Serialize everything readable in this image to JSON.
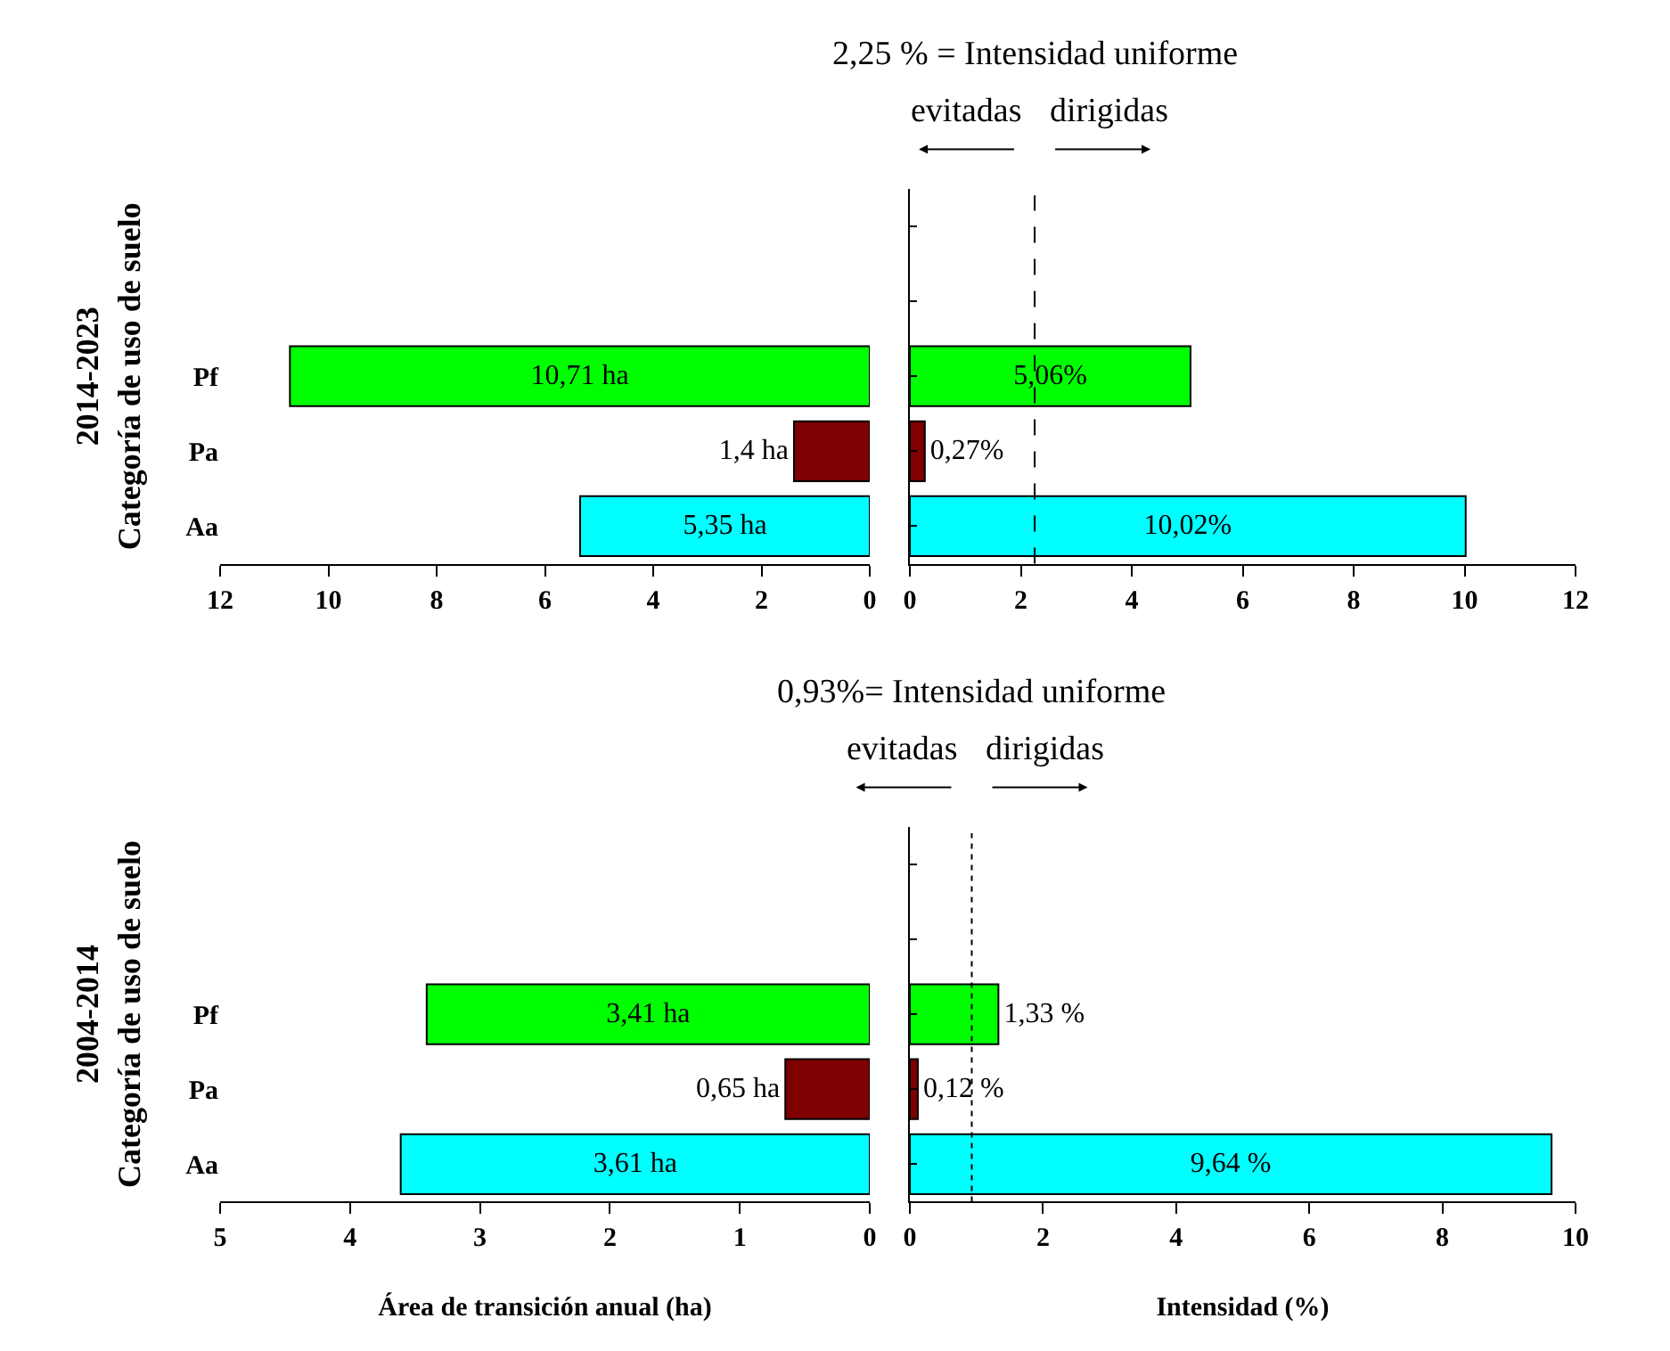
{
  "chart_data": [
    {
      "type": "bar",
      "orientation": "horizontal",
      "ylabel": "2014-2023\nCategoría de uso de suelo",
      "categories": [
        null,
        null,
        "Pf",
        "Pa",
        "Aa"
      ],
      "values": [
        null,
        null,
        10.71,
        1.4,
        5.35
      ],
      "colors": [
        null,
        null,
        "#00ff00",
        "#7f0000",
        "#00ffff"
      ],
      "value_labels": [
        null,
        null,
        "10,71 ha",
        "1,4 ha",
        "5,35 ha"
      ],
      "xlim": [
        12,
        0
      ],
      "xticks": [
        12,
        10,
        8,
        6,
        4,
        2,
        0
      ]
    },
    {
      "type": "bar",
      "orientation": "horizontal",
      "categories": [
        null,
        null,
        "Pf",
        "Pa",
        "Aa"
      ],
      "values": [
        null,
        null,
        5.06,
        0.27,
        10.02
      ],
      "colors": [
        null,
        null,
        "#00ff00",
        "#7f0000",
        "#00ffff"
      ],
      "value_labels": [
        null,
        null,
        "5,06%",
        "0,27%",
        "10,02%"
      ],
      "xlim": [
        0,
        12
      ],
      "xticks": [
        0,
        2,
        4,
        6,
        8,
        10,
        12
      ],
      "tick_labels": "x",
      "ref_lines": [
        {
          "axis": "x",
          "value": 2.25,
          "label": "2,25 % = Intensidad uniforme",
          "line_style": "dashed"
        }
      ],
      "annotations": [
        "evitadas",
        "dirigidas"
      ]
    },
    {
      "type": "bar",
      "orientation": "horizontal",
      "ylabel": "2004-2014\nCategoría de uso de suelo",
      "xlabel": "Área de transición anual (ha)",
      "categories": [
        null,
        null,
        "Pf",
        "Pa",
        "Aa"
      ],
      "values": [
        null,
        null,
        3.41,
        0.65,
        3.61
      ],
      "colors": [
        null,
        null,
        "#00ff00",
        "#7f0000",
        "#00ffff"
      ],
      "value_labels": [
        null,
        null,
        "3,41 ha",
        "0,65 ha",
        "3,61 ha"
      ],
      "xlim": [
        5,
        0
      ],
      "xticks": [
        5,
        4,
        3,
        2,
        1,
        0
      ]
    },
    {
      "type": "bar",
      "orientation": "horizontal",
      "xlabel": "Intensidad (%)",
      "categories": [
        null,
        null,
        "Pf",
        "Pa",
        "Aa"
      ],
      "values": [
        null,
        null,
        1.33,
        0.12,
        9.64
      ],
      "colors": [
        null,
        null,
        "#00ff00",
        "#7f0000",
        "#00ffff"
      ],
      "value_labels": [
        null,
        null,
        "1,33 %",
        "0,12 %",
        "9,64 %"
      ],
      "xlim": [
        0,
        10
      ],
      "xticks": [
        0,
        2,
        4,
        6,
        8,
        10
      ],
      "tick_labels": "x",
      "ref_lines": [
        {
          "axis": "x",
          "value": 0.93,
          "label": "0,93%= Intensidad uniforme",
          "line_style": "dotted"
        }
      ],
      "annotations": [
        "evitadas",
        "dirigidas"
      ]
    }
  ]
}
